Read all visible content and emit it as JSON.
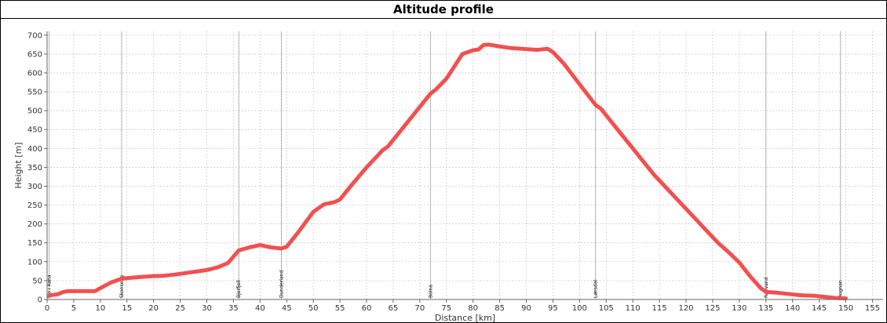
{
  "chart_data": {
    "type": "line",
    "title": "Altitude profile",
    "xlabel": "Distance [km]",
    "ylabel": "Height [m]",
    "xlim": [
      0,
      157
    ],
    "ylim": [
      0,
      710
    ],
    "x_ticks": [
      0,
      5,
      10,
      15,
      20,
      25,
      30,
      35,
      40,
      45,
      50,
      55,
      60,
      65,
      70,
      75,
      80,
      85,
      90,
      95,
      100,
      105,
      110,
      115,
      120,
      125,
      130,
      135,
      140,
      145,
      150,
      155
    ],
    "y_ticks": [
      0,
      50,
      100,
      150,
      200,
      250,
      300,
      350,
      400,
      450,
      500,
      550,
      600,
      650,
      700
    ],
    "grid": true,
    "colors": {
      "line": "#f25050",
      "grid": "#c8c8c8",
      "marker_line": "#b0b0b0"
    },
    "series": [
      {
        "x": [
          0.5,
          1,
          2,
          3,
          4,
          5,
          7,
          9,
          10,
          12,
          14,
          16,
          18,
          20,
          22,
          24,
          26,
          28,
          30,
          32,
          34,
          36,
          38,
          40,
          42,
          44,
          45,
          47,
          50,
          52,
          53,
          54,
          55,
          57,
          60,
          63,
          64,
          66,
          68,
          70,
          72,
          73,
          75,
          78,
          79,
          80,
          81,
          82,
          83,
          85,
          87,
          90,
          92,
          94,
          95,
          97,
          100,
          103,
          104,
          106,
          108,
          110,
          112,
          114,
          116,
          118,
          120,
          122,
          124,
          126,
          128,
          130,
          132,
          134,
          135,
          137,
          139,
          141,
          142,
          144,
          146,
          148,
          150
        ],
        "values": [
          10,
          12,
          14,
          20,
          22,
          22,
          22,
          22,
          30,
          45,
          55,
          58,
          60,
          62,
          63,
          66,
          70,
          74,
          78,
          85,
          97,
          130,
          138,
          144,
          138,
          135,
          140,
          175,
          232,
          252,
          255,
          258,
          265,
          300,
          350,
          395,
          405,
          440,
          475,
          510,
          545,
          556,
          585,
          650,
          655,
          660,
          662,
          674,
          675,
          670,
          666,
          663,
          661,
          664,
          655,
          625,
          570,
          515,
          505,
          470,
          435,
          400,
          365,
          330,
          300,
          270,
          240,
          210,
          180,
          150,
          125,
          98,
          62,
          30,
          20,
          18,
          15,
          12,
          11,
          10,
          7,
          4,
          3
        ]
      }
    ],
    "markers": [
      {
        "label": "Mo i Rana",
        "x": 0.4
      },
      {
        "label": "Skonseng",
        "x": 14
      },
      {
        "label": "Bjerfjell",
        "x": 36
      },
      {
        "label": "Dunderland",
        "x": 44
      },
      {
        "label": "Bolna",
        "x": 72
      },
      {
        "label": "Lønsdal",
        "x": 103
      },
      {
        "label": "Rønvand",
        "x": 135
      },
      {
        "label": "Rognan",
        "x": 149
      }
    ]
  }
}
